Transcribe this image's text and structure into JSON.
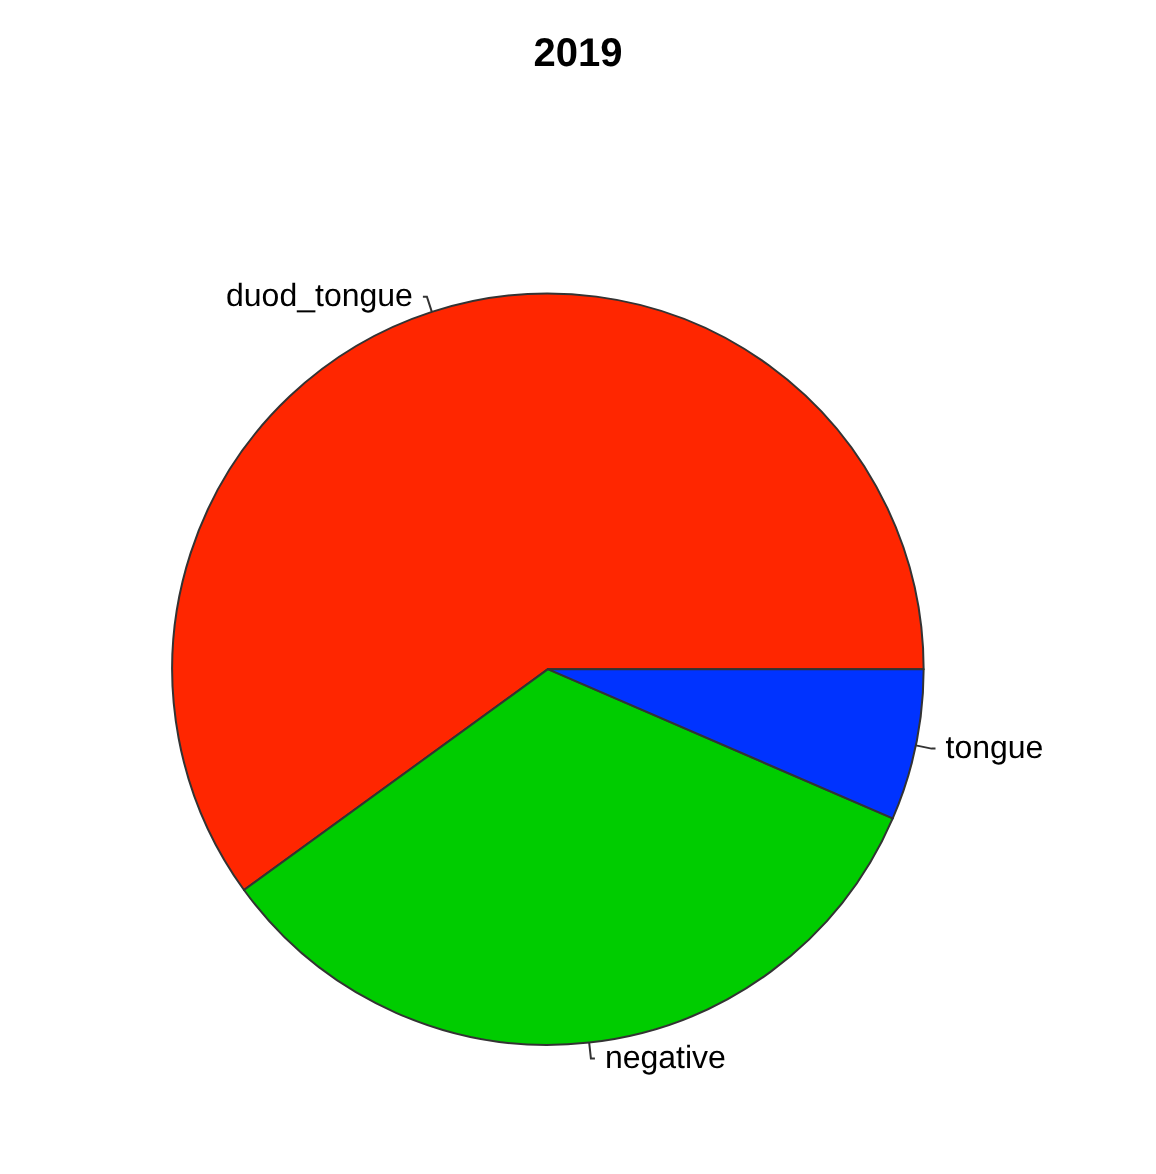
{
  "chart_data": {
    "type": "pie",
    "title": "2019",
    "categories": [
      "duod_tongue",
      "negative",
      "tongue"
    ],
    "values": [
      60,
      33.5,
      6.5
    ],
    "colors": [
      "#ff2600",
      "#00cc00",
      "#0033ff"
    ],
    "legend": false
  }
}
